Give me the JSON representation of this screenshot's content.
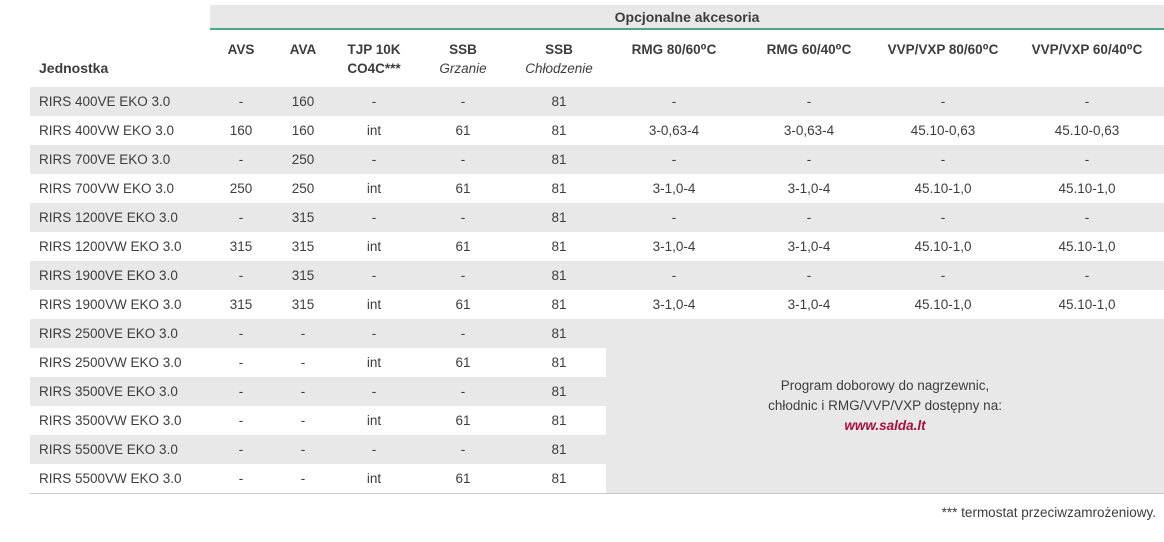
{
  "colors": {
    "accent_teal": "#4aa78d",
    "stripe_gray": "#e8e8e8",
    "text": "#3d3d3d",
    "link_red": "#a50f3f",
    "bottom_rule": "#c9c9c9"
  },
  "table": {
    "group_header": "Opcjonalne akcesoria",
    "unit_header": "Jednostka",
    "columns": [
      {
        "line1": "AVS",
        "line2": "",
        "line2_italic": false
      },
      {
        "line1": "AVA",
        "line2": "",
        "line2_italic": false
      },
      {
        "line1": "TJP 10K",
        "line2": "CO4C***",
        "line2_italic": false
      },
      {
        "line1": "SSB",
        "line2": "Grzanie",
        "line2_italic": true
      },
      {
        "line1": "SSB",
        "line2": "Chłodzenie",
        "line2_italic": true
      },
      {
        "line1": "RMG 80/60⁰C",
        "line2": "",
        "line2_italic": false
      },
      {
        "line1": "RMG 60/40⁰C",
        "line2": "",
        "line2_italic": false
      },
      {
        "line1": "VVP/VXP 80/60⁰C",
        "line2": "",
        "line2_italic": false
      },
      {
        "line1": "VVP/VXP 60/40⁰C",
        "line2": "",
        "line2_italic": false
      }
    ],
    "rows": [
      {
        "label": "RIRS 400VE EKO 3.0",
        "values": [
          "-",
          "160",
          "-",
          "-",
          "81",
          "-",
          "-",
          "-",
          "-"
        ]
      },
      {
        "label": "RIRS 400VW EKO 3.0",
        "values": [
          "160",
          "160",
          "int",
          "61",
          "81",
          "3-0,63-4",
          "3-0,63-4",
          "45.10-0,63",
          "45.10-0,63"
        ]
      },
      {
        "label": "RIRS 700VE EKO 3.0",
        "values": [
          "-",
          "250",
          "-",
          "-",
          "81",
          "-",
          "-",
          "-",
          "-"
        ]
      },
      {
        "label": "RIRS 700VW EKO 3.0",
        "values": [
          "250",
          "250",
          "int",
          "61",
          "81",
          "3-1,0-4",
          "3-1,0-4",
          "45.10-1,0",
          "45.10-1,0"
        ]
      },
      {
        "label": "RIRS 1200VE EKO 3.0",
        "values": [
          "-",
          "315",
          "-",
          "-",
          "81",
          "-",
          "-",
          "-",
          "-"
        ]
      },
      {
        "label": "RIRS 1200VW EKO 3.0",
        "values": [
          "315",
          "315",
          "int",
          "61",
          "81",
          "3-1,0-4",
          "3-1,0-4",
          "45.10-1,0",
          "45.10-1,0"
        ]
      },
      {
        "label": "RIRS 1900VE EKO 3.0",
        "values": [
          "-",
          "315",
          "-",
          "-",
          "81",
          "-",
          "-",
          "-",
          "-"
        ]
      },
      {
        "label": "RIRS 1900VW EKO 3.0",
        "values": [
          "315",
          "315",
          "int",
          "61",
          "81",
          "3-1,0-4",
          "3-1,0-4",
          "45.10-1,0",
          "45.10-1,0"
        ]
      },
      {
        "label": "RIRS 2500VE EKO 3.0",
        "values": [
          "-",
          "-",
          "-",
          "-",
          "81"
        ]
      },
      {
        "label": "RIRS 2500VW EKO 3.0",
        "values": [
          "-",
          "-",
          "int",
          "61",
          "81"
        ]
      },
      {
        "label": "RIRS 3500VE EKO 3.0",
        "values": [
          "-",
          "-",
          "-",
          "-",
          "81"
        ]
      },
      {
        "label": "RIRS 3500VW EKO 3.0",
        "values": [
          "-",
          "-",
          "int",
          "61",
          "81"
        ]
      },
      {
        "label": "RIRS 5500VE EKO 3.0",
        "values": [
          "-",
          "-",
          "-",
          "-",
          "81"
        ]
      },
      {
        "label": "RIRS 5500VW EKO 3.0",
        "values": [
          "-",
          "-",
          "int",
          "61",
          "81"
        ]
      }
    ],
    "merged_note": {
      "line1": "Program doborowy do nagrzewnic,",
      "line2": "chłodnic i RMG/VVP/VXP dostępny na:",
      "link": "www.salda.lt"
    },
    "footnote": "*** termostat przeciwzamrożeniowy."
  }
}
